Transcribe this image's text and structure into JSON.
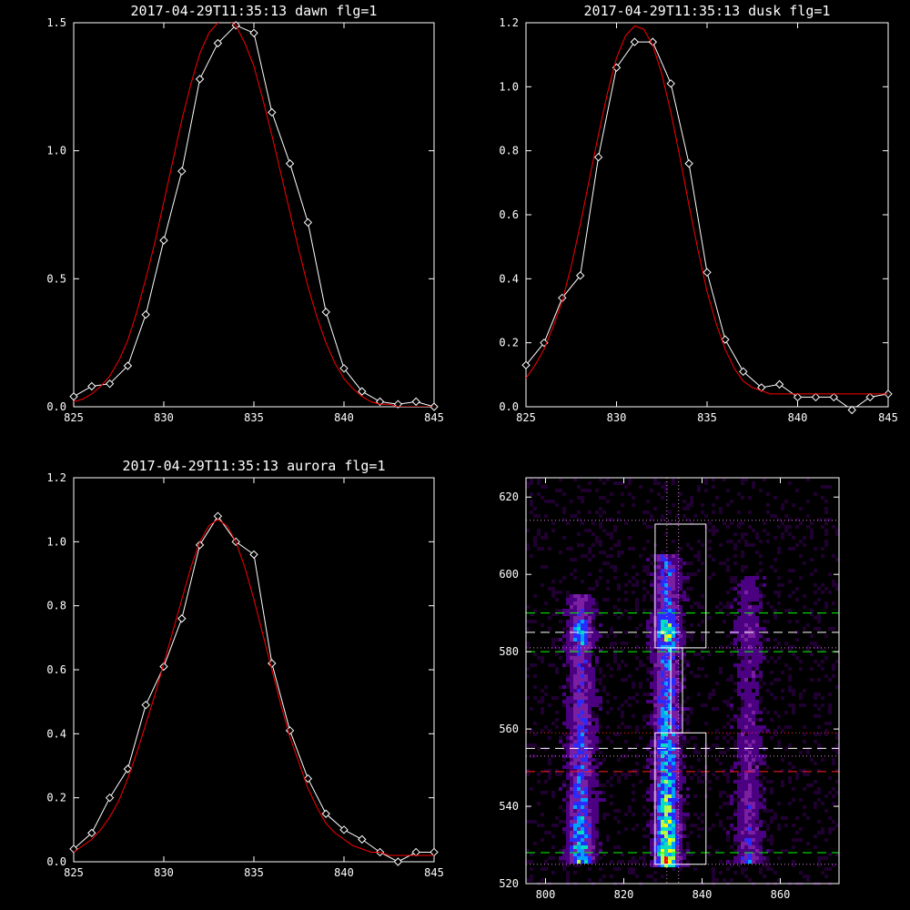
{
  "chart_data": [
    {
      "type": "line",
      "title": "2017-04-29T11:35:13 dawn flg=1",
      "xlim": [
        825,
        845
      ],
      "ylim": [
        0,
        1.5
      ],
      "xticks": [
        "825",
        "830",
        "835",
        "840",
        "845"
      ],
      "yticks": [
        "0.0",
        "0.5",
        "1.0",
        "1.5"
      ],
      "series": [
        {
          "color": "#ffffff",
          "markers": "diamond",
          "x": [
            825,
            826,
            827,
            828,
            829,
            830,
            831,
            832,
            833,
            834,
            835,
            836,
            837,
            838,
            839,
            840,
            841,
            842,
            843,
            844,
            845
          ],
          "y": [
            0.04,
            0.08,
            0.09,
            0.16,
            0.36,
            0.65,
            0.92,
            1.28,
            1.42,
            1.49,
            1.46,
            1.15,
            0.95,
            0.72,
            0.37,
            0.15,
            0.06,
            0.02,
            0.01,
            0.02,
            0.0
          ]
        },
        {
          "color": "#ff0000",
          "x": [
            825,
            825.5,
            826,
            826.5,
            827,
            827.5,
            828,
            828.5,
            829,
            829.5,
            830,
            830.5,
            831,
            831.5,
            832,
            832.5,
            833,
            833.5,
            834,
            834.5,
            835,
            835.5,
            836,
            836.5,
            837,
            837.5,
            838,
            838.5,
            839,
            839.5,
            840,
            840.5,
            841,
            841.5,
            842,
            842.5,
            843,
            843.5,
            844,
            844.5,
            845
          ],
          "y": [
            0.02,
            0.03,
            0.05,
            0.08,
            0.12,
            0.18,
            0.26,
            0.37,
            0.5,
            0.64,
            0.8,
            0.96,
            1.12,
            1.26,
            1.38,
            1.46,
            1.5,
            1.51,
            1.49,
            1.42,
            1.33,
            1.2,
            1.06,
            0.91,
            0.76,
            0.61,
            0.47,
            0.35,
            0.25,
            0.17,
            0.11,
            0.07,
            0.04,
            0.02,
            0.01,
            0.01,
            0.0,
            0.0,
            0.0,
            0.0,
            0.0
          ]
        }
      ]
    },
    {
      "type": "line",
      "title": "2017-04-29T11:35:13 dusk flg=1",
      "xlim": [
        825,
        845
      ],
      "ylim": [
        0,
        1.2
      ],
      "xticks": [
        "825",
        "830",
        "835",
        "840",
        "845"
      ],
      "yticks": [
        "0.0",
        "0.2",
        "0.4",
        "0.6",
        "0.8",
        "1.0",
        "1.2"
      ],
      "series": [
        {
          "color": "#ffffff",
          "markers": "diamond",
          "x": [
            825,
            826,
            827,
            828,
            829,
            830,
            831,
            832,
            833,
            834,
            835,
            836,
            837,
            838,
            839,
            840,
            841,
            842,
            843,
            844,
            845
          ],
          "y": [
            0.13,
            0.2,
            0.34,
            0.41,
            0.78,
            1.06,
            1.14,
            1.14,
            1.01,
            0.76,
            0.42,
            0.21,
            0.11,
            0.06,
            0.07,
            0.03,
            0.03,
            0.03,
            -0.01,
            0.03,
            0.04
          ]
        },
        {
          "color": "#ff0000",
          "x": [
            825,
            825.5,
            826,
            826.5,
            827,
            827.5,
            828,
            828.5,
            829,
            829.5,
            830,
            830.5,
            831,
            831.5,
            832,
            832.5,
            833,
            833.5,
            834,
            834.5,
            835,
            835.5,
            836,
            836.5,
            837,
            837.5,
            838,
            838.5,
            839,
            839.5,
            840,
            840.5,
            841,
            841.5,
            842,
            842.5,
            843,
            843.5,
            844,
            844.5,
            845
          ],
          "y": [
            0.09,
            0.13,
            0.18,
            0.25,
            0.33,
            0.44,
            0.57,
            0.71,
            0.85,
            0.98,
            1.09,
            1.16,
            1.19,
            1.18,
            1.13,
            1.04,
            0.92,
            0.78,
            0.63,
            0.49,
            0.36,
            0.26,
            0.18,
            0.12,
            0.08,
            0.06,
            0.05,
            0.04,
            0.04,
            0.04,
            0.04,
            0.04,
            0.04,
            0.04,
            0.04,
            0.04,
            0.04,
            0.04,
            0.04,
            0.04,
            0.04
          ]
        }
      ]
    },
    {
      "type": "line",
      "title": "2017-04-29T11:35:13 aurora flg=1",
      "xlim": [
        825,
        845
      ],
      "ylim": [
        0,
        1.2
      ],
      "xticks": [
        "825",
        "830",
        "835",
        "840",
        "845"
      ],
      "yticks": [
        "0.0",
        "0.2",
        "0.4",
        "0.6",
        "0.8",
        "1.0",
        "1.2"
      ],
      "series": [
        {
          "color": "#ffffff",
          "markers": "diamond",
          "x": [
            825,
            826,
            827,
            828,
            829,
            830,
            831,
            832,
            833,
            834,
            835,
            836,
            837,
            838,
            839,
            840,
            841,
            842,
            843,
            844,
            845
          ],
          "y": [
            0.04,
            0.09,
            0.2,
            0.29,
            0.49,
            0.61,
            0.76,
            0.99,
            1.08,
            1.0,
            0.96,
            0.62,
            0.41,
            0.26,
            0.15,
            0.1,
            0.07,
            0.03,
            0.0,
            0.03,
            0.03
          ]
        },
        {
          "color": "#ff0000",
          "x": [
            825,
            825.5,
            826,
            826.5,
            827,
            827.5,
            828,
            828.5,
            829,
            829.5,
            830,
            830.5,
            831,
            831.5,
            832,
            832.5,
            833,
            833.5,
            834,
            834.5,
            835,
            835.5,
            836,
            836.5,
            837,
            837.5,
            838,
            838.5,
            839,
            839.5,
            840,
            840.5,
            841,
            841.5,
            842,
            842.5,
            843,
            843.5,
            844,
            844.5,
            845
          ],
          "y": [
            0.03,
            0.05,
            0.07,
            0.1,
            0.14,
            0.19,
            0.26,
            0.34,
            0.43,
            0.52,
            0.62,
            0.72,
            0.82,
            0.92,
            1.0,
            1.05,
            1.07,
            1.05,
            1.0,
            0.92,
            0.82,
            0.71,
            0.6,
            0.49,
            0.39,
            0.31,
            0.23,
            0.17,
            0.12,
            0.09,
            0.07,
            0.05,
            0.04,
            0.03,
            0.03,
            0.02,
            0.02,
            0.02,
            0.02,
            0.02,
            0.02
          ]
        }
      ]
    },
    {
      "type": "heatmap",
      "xlim": [
        795,
        875
      ],
      "ylim": [
        520,
        625
      ],
      "xticks": [
        "800",
        "820",
        "840",
        "860"
      ],
      "yticks": [
        "520",
        "540",
        "560",
        "580",
        "600",
        "620"
      ],
      "colormap": [
        "#200030",
        "#4b0082",
        "#7b1fa2",
        "#2a2aff",
        "#00a0ff",
        "#00e0c0",
        "#b0ff40",
        "#ffff00",
        "#ff0000"
      ],
      "emission_bands": [
        {
          "x_center": 809,
          "y_range": [
            525,
            595
          ],
          "peak": 0.7
        },
        {
          "x_center": 831,
          "y_range": [
            524,
            605
          ],
          "peak": 1.0
        },
        {
          "x_center": 852,
          "y_range": [
            525,
            600
          ],
          "peak": 0.35
        }
      ],
      "boxes": [
        {
          "x": [
            828,
            841
          ],
          "y": [
            525,
            559
          ],
          "color": "#ffffff"
        },
        {
          "x": [
            828,
            841
          ],
          "y": [
            581,
            613
          ],
          "color": "#ffffff"
        },
        {
          "x": [
            832,
            835
          ],
          "y": [
            559,
            581
          ],
          "color": "#ffffff"
        }
      ],
      "hlines": [
        {
          "y": 614,
          "color": "#dd88dd",
          "style": "dotted"
        },
        {
          "y": 590,
          "color": "#00ff00",
          "style": "dashed"
        },
        {
          "y": 585,
          "color": "#ffffff",
          "style": "dashed"
        },
        {
          "y": 580,
          "color": "#00ff00",
          "style": "dashed"
        },
        {
          "y": 581,
          "color": "#dd88dd",
          "style": "dotted"
        },
        {
          "y": 559,
          "color": "#ff2020",
          "style": "dotted"
        },
        {
          "y": 555,
          "color": "#ffffff",
          "style": "dashed"
        },
        {
          "y": 553,
          "color": "#dd88dd",
          "style": "dotted"
        },
        {
          "y": 549,
          "color": "#ff2020",
          "style": "dashed"
        },
        {
          "y": 528,
          "color": "#00ff00",
          "style": "dashed"
        },
        {
          "y": 525,
          "color": "#dd88dd",
          "style": "dotted"
        }
      ],
      "vlines": [
        {
          "x": 831,
          "color": "#dd88dd",
          "style": "dotted"
        },
        {
          "x": 834,
          "color": "#dd88dd",
          "style": "dotted"
        }
      ]
    }
  ]
}
